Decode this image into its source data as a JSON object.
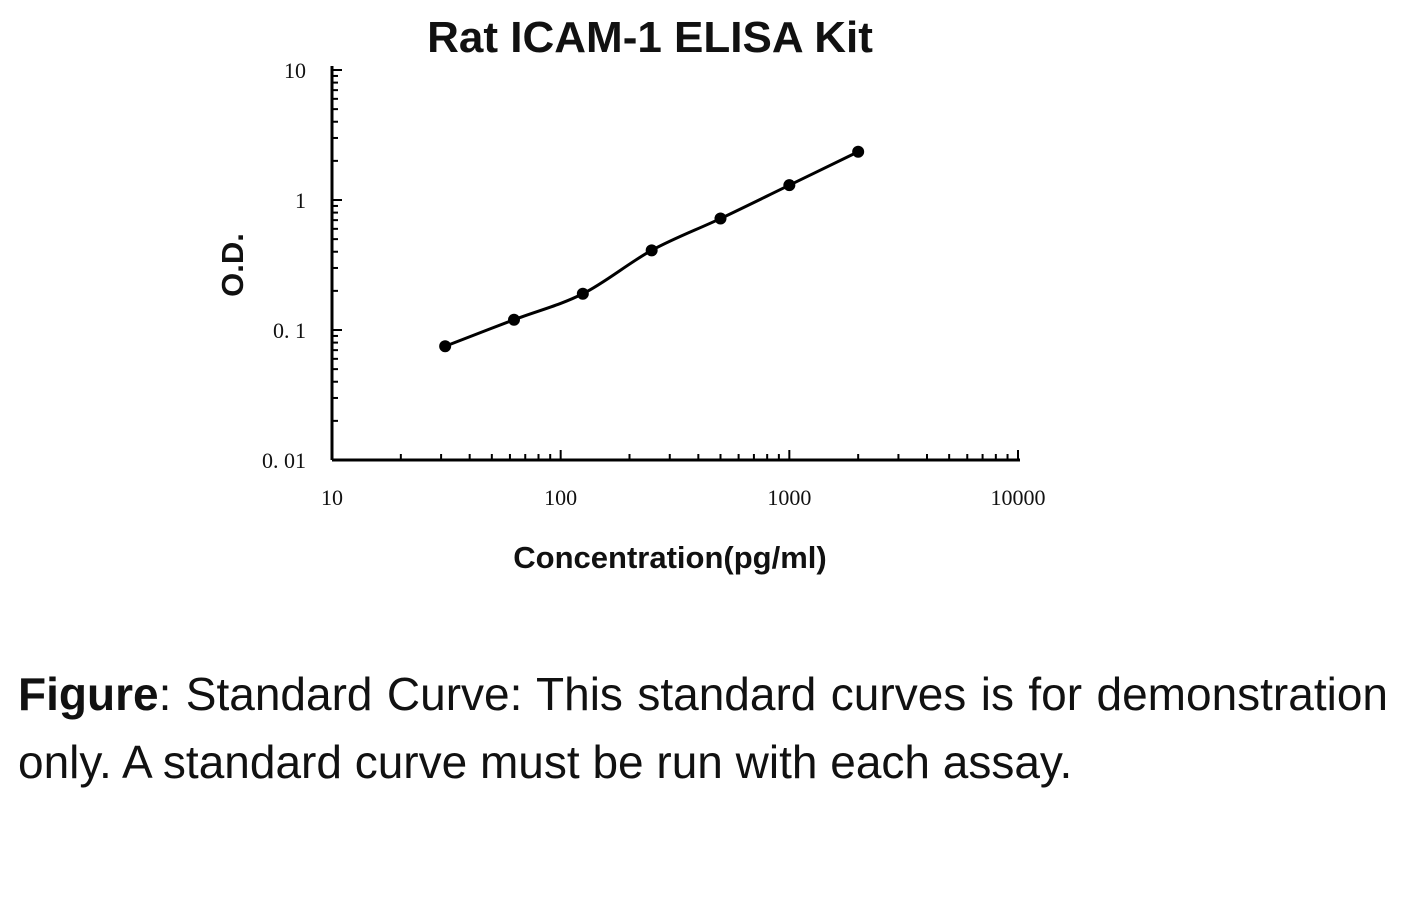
{
  "chart_data": {
    "type": "line",
    "title": "Rat ICAM-1 ELISA Kit",
    "xlabel": "Concentration(pg/ml)",
    "ylabel": "O.D.",
    "x_scale": "log",
    "y_scale": "log",
    "xlim": [
      10,
      10000
    ],
    "ylim": [
      0.01,
      10
    ],
    "x_ticks": [
      {
        "value": 10,
        "label": "10"
      },
      {
        "value": 100,
        "label": "100"
      },
      {
        "value": 1000,
        "label": "1000"
      },
      {
        "value": 10000,
        "label": "10000"
      }
    ],
    "y_ticks": [
      {
        "value": 10,
        "label": "10"
      },
      {
        "value": 1,
        "label": "1"
      },
      {
        "value": 0.1,
        "label": "0. 1"
      },
      {
        "value": 0.01,
        "label": "0. 01"
      }
    ],
    "grid": false,
    "legend": "none",
    "series": [
      {
        "x": [
          31.25,
          62.5,
          125,
          250,
          500,
          1000,
          2000
        ],
        "y": [
          0.075,
          0.12,
          0.19,
          0.41,
          0.72,
          1.3,
          2.35
        ],
        "color": "#000000",
        "marker": "circle"
      }
    ]
  },
  "caption": {
    "lead": "Figure",
    "text": ": Standard Curve: This standard curves is for demonstration only. A standard curve must be run with each assay."
  }
}
